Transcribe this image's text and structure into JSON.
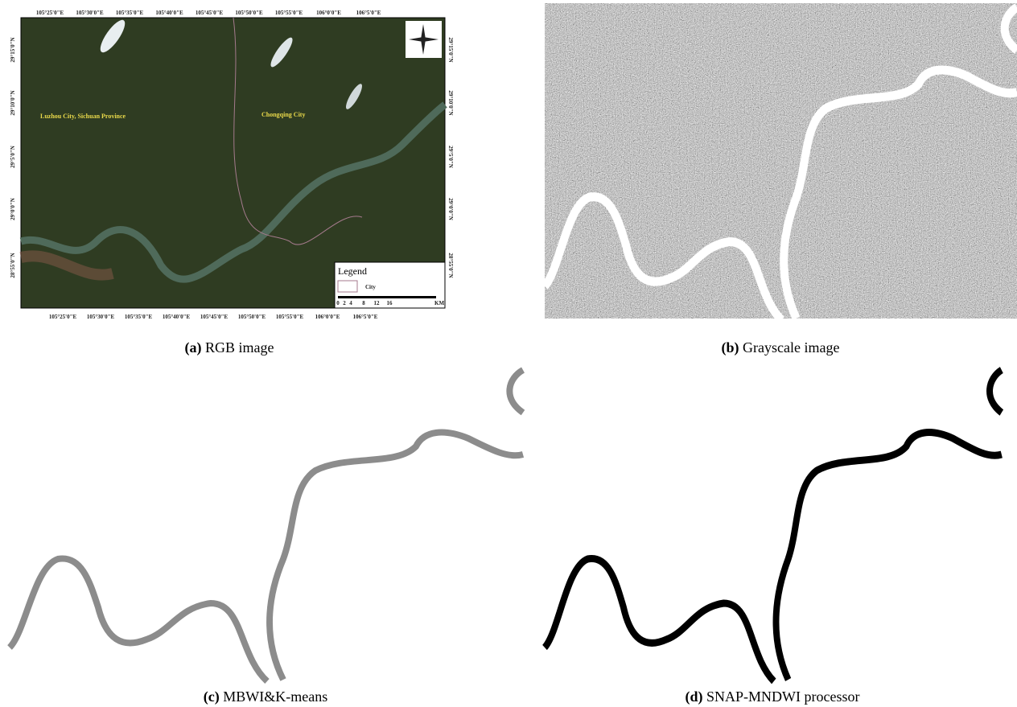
{
  "panels": [
    {
      "label": "(a)",
      "caption": "RGB image",
      "map": {
        "top_labels": [
          "105°25'0\"E",
          "105°30'0\"E",
          "105°35'0\"E",
          "105°40'0\"E",
          "105°45'0\"E",
          "105°50'0\"E",
          "105°55'0\"E",
          "106°0'0\"E",
          "106°5'0\"E"
        ],
        "bottom_labels": [
          "105°25'0\"E",
          "105°30'0\"E",
          "105°35'0\"E",
          "105°40'0\"E",
          "105°45'0\"E",
          "105°50'0\"E",
          "105°55'0\"E",
          "106°0'0\"E",
          "106°5'0\"E"
        ],
        "left_labels": [
          "29°15'0\"N",
          "29°10'0\"N",
          "29°5'0\"N",
          "29°0'0\"N",
          "28°55'0\"N"
        ],
        "right_labels": [
          "29°15'0\"N",
          "29°10'0\"N",
          "29°5'0\"N",
          "29°0'0\"N",
          "28°55'0\"N"
        ],
        "places": [
          "Luzhou City, Sichuan Province",
          "Chongqing City"
        ],
        "legend": {
          "title": "Legend",
          "item": "City"
        },
        "scale": [
          0,
          2,
          4,
          8,
          12,
          16
        ],
        "scale_unit": "KM"
      }
    },
    {
      "label": "(b)",
      "caption": "Grayscale image"
    },
    {
      "label": "(c)",
      "caption": "MBWI&K-means"
    },
    {
      "label": "(d)",
      "caption": "SNAP-MNDWI processor"
    }
  ]
}
